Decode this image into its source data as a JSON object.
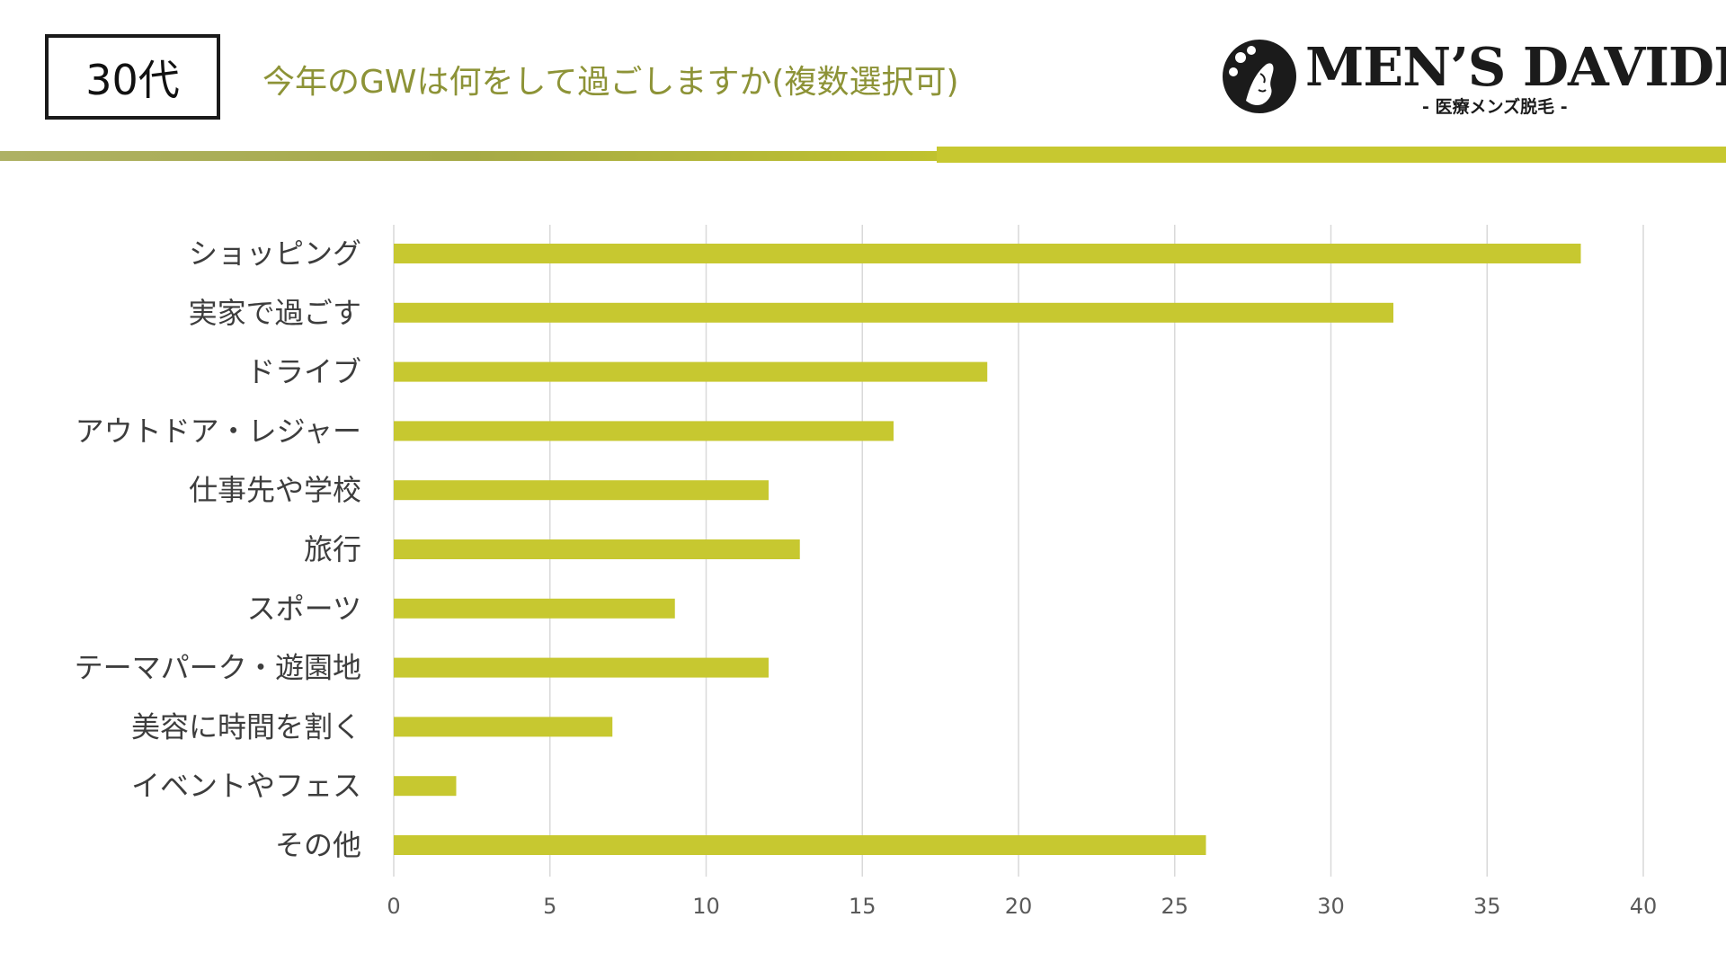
{
  "header": {
    "age_label": "30代",
    "title": "今年のGWは何をして過ごしますか(複数選択可)"
  },
  "logo": {
    "name": "MEN’S DAVIDE",
    "subtitle": "- 医療メンズ脱毛 -"
  },
  "colors": {
    "accent": "#c7c830",
    "title": "#8d9337",
    "grid": "#d9d9d9"
  },
  "chart_data": {
    "type": "bar",
    "orientation": "horizontal",
    "categories": [
      "ショッピング",
      "実家で過ごす",
      "ドライブ",
      "アウトドア・レジャー",
      "仕事先や学校",
      "旅行",
      "スポーツ",
      "テーマパーク・遊園地",
      "美容に時間を割く",
      "イベントやフェス",
      "その他"
    ],
    "values": [
      38,
      32,
      19,
      16,
      12,
      13,
      9,
      12,
      7,
      2,
      26
    ],
    "xlim": [
      0,
      40
    ],
    "xticks": [
      0,
      5,
      10,
      15,
      20,
      25,
      30,
      35,
      40
    ],
    "grid": "vertical",
    "bar_color": "#c7c830"
  }
}
